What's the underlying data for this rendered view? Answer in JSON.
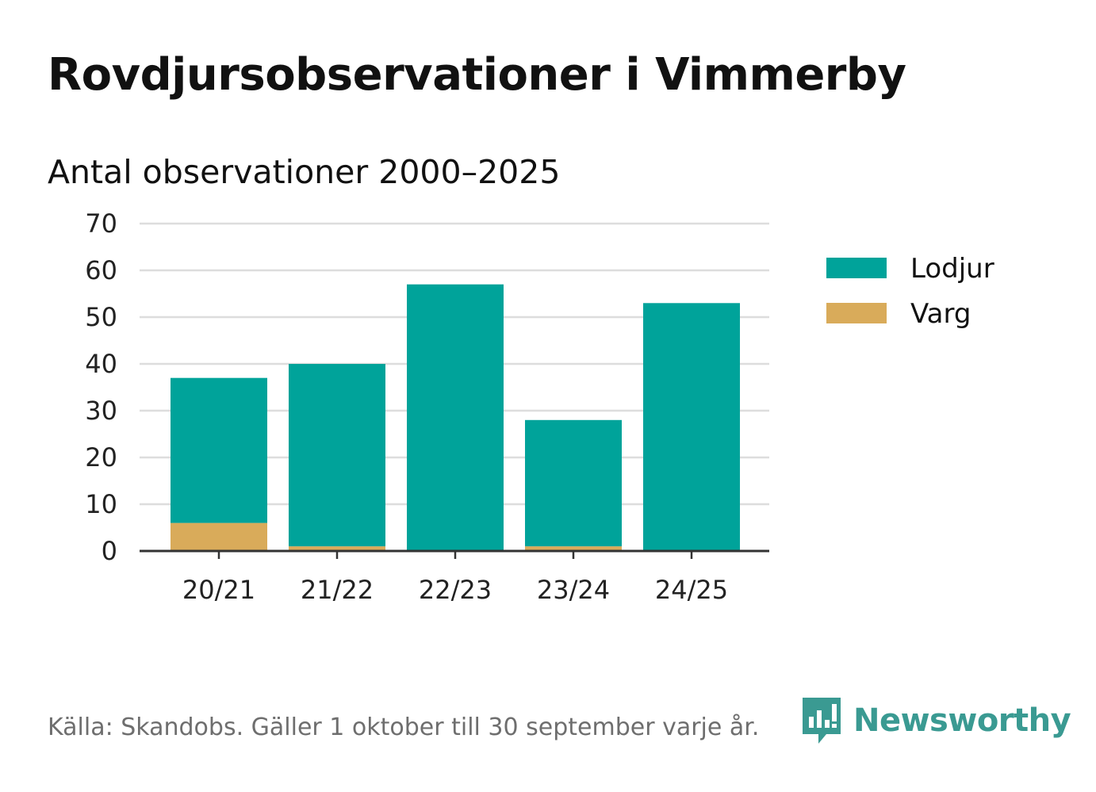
{
  "title": "Rovdjursobservationer i Vimmerby",
  "subtitle": "Antal observationer 2000–2025",
  "source": "Källa: Skandobs. Gäller 1 oktober till 30 september varje år.",
  "brand": "Newsworthy",
  "colors": {
    "lodjur": "#00a39a",
    "varg": "#d9ab5a",
    "grid": "#dddddd",
    "axis": "#333333",
    "brand": "#3a9a92"
  },
  "chart_data": {
    "type": "bar",
    "stacked": true,
    "title": "Rovdjursobservationer i Vimmerby",
    "subtitle": "Antal observationer 2000–2025",
    "categories": [
      "20/21",
      "21/22",
      "22/23",
      "23/24",
      "24/25"
    ],
    "series": [
      {
        "name": "Varg",
        "values": [
          6,
          1,
          0,
          1,
          0
        ]
      },
      {
        "name": "Lodjur",
        "values": [
          31,
          39,
          57,
          27,
          53
        ]
      }
    ],
    "legend": [
      "Lodjur",
      "Varg"
    ],
    "legend_position": "right",
    "ylim": [
      0,
      70
    ],
    "yticks": [
      0,
      10,
      20,
      30,
      40,
      50,
      60,
      70
    ],
    "grid": true,
    "xlabel": "",
    "ylabel": ""
  }
}
